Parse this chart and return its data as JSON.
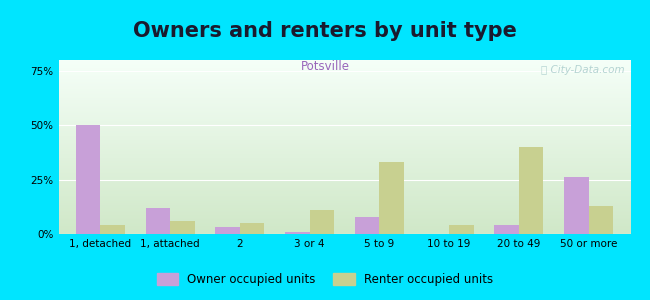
{
  "title": "Owners and renters by unit type",
  "subtitle": "Potsville",
  "categories": [
    "1, detached",
    "1, attached",
    "2",
    "3 or 4",
    "5 to 9",
    "10 to 19",
    "20 to 49",
    "50 or more"
  ],
  "owner_values": [
    50,
    12,
    3,
    1,
    8,
    0,
    4,
    26
  ],
  "renter_values": [
    4,
    6,
    5,
    11,
    33,
    4,
    40,
    13
  ],
  "owner_color": "#c8a0d8",
  "renter_color": "#c8d090",
  "background_color": "#00e5ff",
  "plot_bg_top": "#f5fff8",
  "plot_bg_bottom": "#d0e8c8",
  "ylim_max": 80,
  "yticks": [
    0,
    25,
    50,
    75
  ],
  "ytick_labels": [
    "0%",
    "25%",
    "50%",
    "75%"
  ],
  "bar_width": 0.35,
  "legend_owner": "Owner occupied units",
  "legend_renter": "Renter occupied units",
  "title_fontsize": 15,
  "subtitle_fontsize": 8.5,
  "tick_fontsize": 7.5,
  "legend_fontsize": 8.5,
  "watermark_text": "ⓘ City-Data.com",
  "title_color": "#1a1a2e",
  "subtitle_color": "#9966bb",
  "watermark_color": "#aacccc"
}
